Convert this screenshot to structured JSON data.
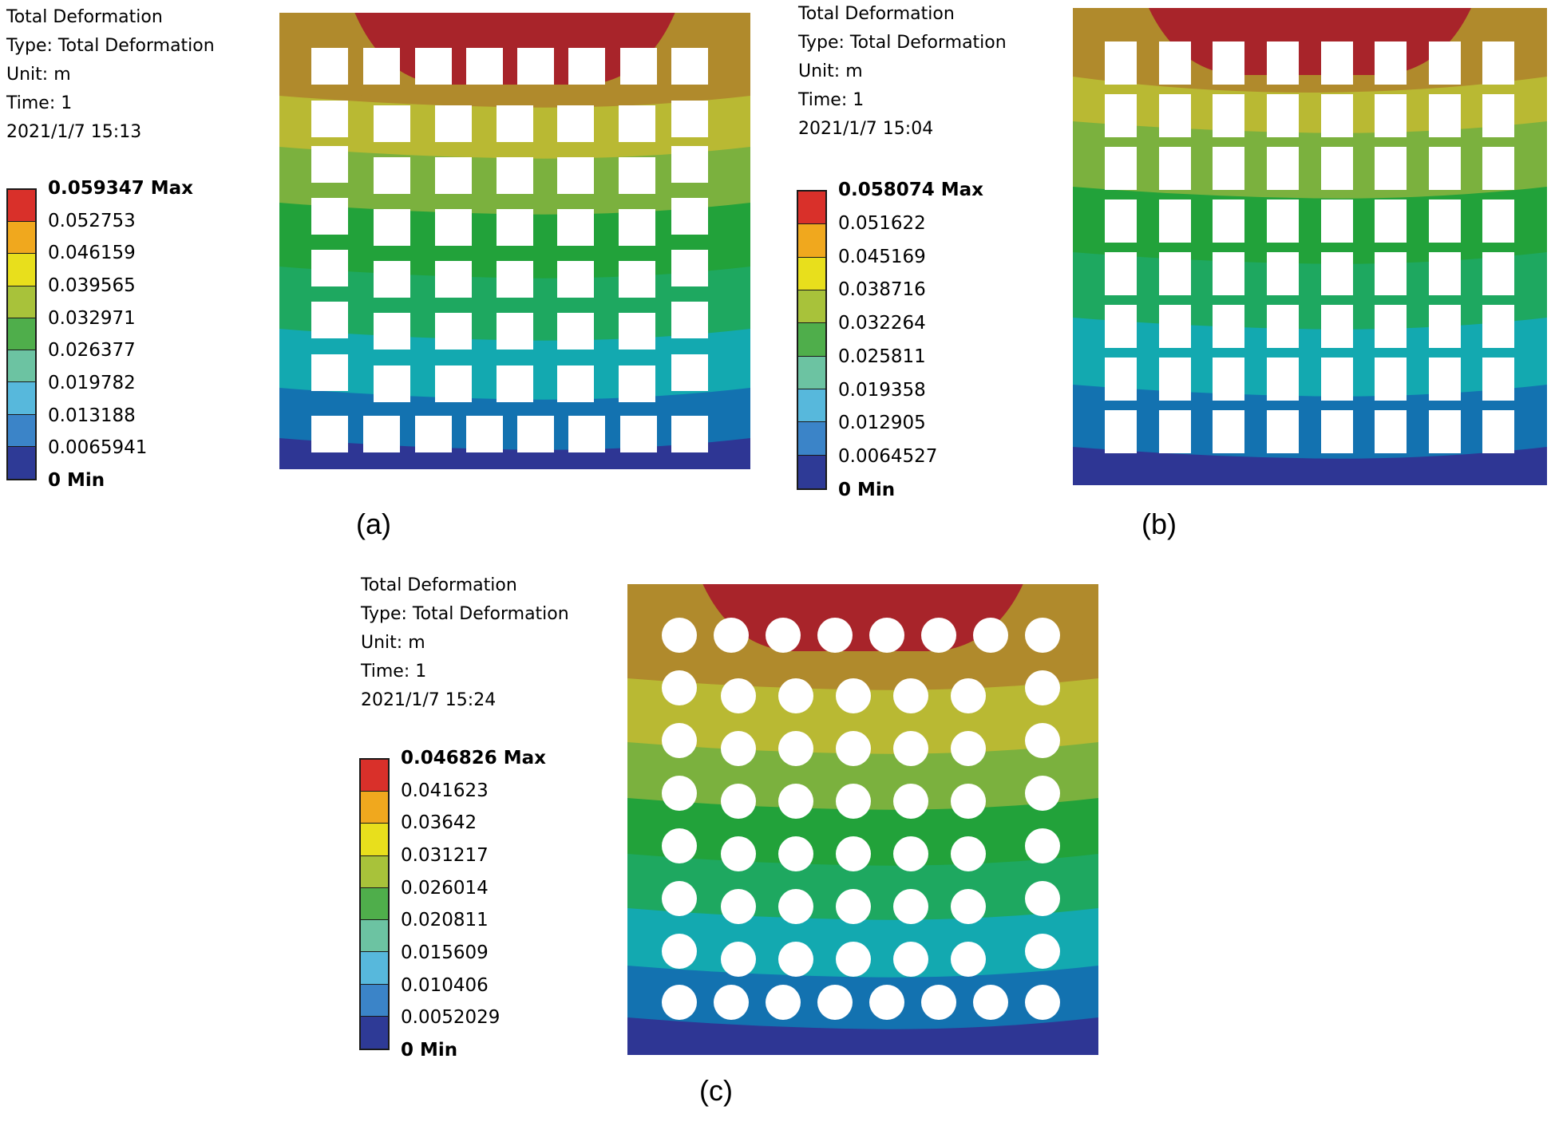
{
  "colormap": [
    "#2e3a96",
    "#3b84c8",
    "#57b8dc",
    "#6cc3a2",
    "#4fae4b",
    "#a8c23a",
    "#e8df1c",
    "#f0a81e",
    "#d9302a"
  ],
  "plate_colors": {
    "band_colors": [
      "#2e3694",
      "#1372b0",
      "#13a9b0",
      "#1ea860",
      "#22a23a",
      "#7bb13e",
      "#b9b933",
      "#b08a2c",
      "#a8242a"
    ]
  },
  "panels": [
    {
      "caption": "(a)",
      "info": [
        "Total Deformation",
        "Type: Total Deformation",
        "Unit: m",
        "Time: 1",
        "2021/1/7 15:13"
      ],
      "legend_labels": [
        "0.059347 Max",
        "0.052753",
        "0.046159",
        "0.039565",
        "0.032971",
        "0.026377",
        "0.019782",
        "0.013188",
        "0.0065941",
        "0 Min"
      ],
      "max": 0.059347,
      "hole_shape": "square",
      "hole_grid": "8 columns x 8 rows"
    },
    {
      "caption": "(b)",
      "info": [
        "Total Deformation",
        "Type: Total Deformation",
        "Unit: m",
        "Time: 1",
        "2021/1/7 15:04"
      ],
      "legend_labels": [
        "0.058074 Max",
        "0.051622",
        "0.045169",
        "0.038716",
        "0.032264",
        "0.025811",
        "0.019358",
        "0.012905",
        "0.0064527",
        "0 Min"
      ],
      "max": 0.058074,
      "hole_shape": "rectangle",
      "hole_grid": "8 columns x 8 rows"
    },
    {
      "caption": "(c)",
      "info": [
        "Total Deformation",
        "Type: Total Deformation",
        "Unit: m",
        "Time: 1",
        "2021/1/7 15:24"
      ],
      "legend_labels": [
        "0.046826 Max",
        "0.041623",
        "0.03642",
        "0.031217",
        "0.026014",
        "0.020811",
        "0.015609",
        "0.010406",
        "0.0052029",
        "0 Min"
      ],
      "max": 0.046826,
      "hole_shape": "circle",
      "hole_grid": "8 columns x 8 rows"
    }
  ]
}
